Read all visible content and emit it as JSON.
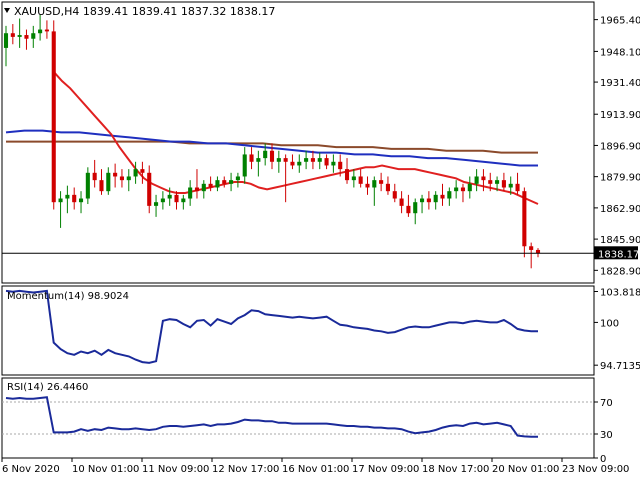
{
  "symbol_header": "XAUUSD,H4  1839.41 1839.41 1837.32 1838.17",
  "price_tag": "1838.17",
  "colors": {
    "bull": "#008000",
    "bear": "#d00000",
    "ma_fast": "#e02020",
    "ma_mid": "#1f2fbf",
    "ma_slow": "#8b4a2b",
    "osc": "#1a2a9a",
    "grid": "#aaaaaa",
    "frame": "#000000"
  },
  "chart_data": [
    {
      "type": "candlestick",
      "title": "XAUUSD,H4  1839.41 1839.41 1837.32 1838.17",
      "ylim": [
        1822,
        1975
      ],
      "y_ticks": [
        1965.4,
        1948.1,
        1931.4,
        1913.9,
        1896.9,
        1879.9,
        1862.9,
        1845.9,
        1828.9
      ],
      "y_tick_labels": [
        "1965.40",
        "1948.10",
        "1931.40",
        "1913.90",
        "1896.90",
        "1879.90",
        "1862.90",
        "1845.90",
        "1828.90"
      ],
      "last_price": 1838.17,
      "candles": [
        [
          1950.0,
          1962.0,
          1940.0,
          1958.0
        ],
        [
          1958.0,
          1963.0,
          1952.0,
          1956.0
        ],
        [
          1956.0,
          1966.0,
          1950.0,
          1957.0
        ],
        [
          1957.0,
          1960.0,
          1949.0,
          1955.0
        ],
        [
          1955.0,
          1962.0,
          1950.0,
          1958.0
        ],
        [
          1958.0,
          1968.0,
          1954.0,
          1960.0
        ],
        [
          1960.0,
          1965.0,
          1955.0,
          1959.0
        ],
        [
          1959.0,
          1965.0,
          1862.0,
          1866.0
        ],
        [
          1866.0,
          1872.0,
          1852.0,
          1868.0
        ],
        [
          1868.0,
          1875.0,
          1860.0,
          1870.0
        ],
        [
          1870.0,
          1874.0,
          1862.0,
          1866.0
        ],
        [
          1866.0,
          1872.0,
          1860.0,
          1868.0
        ],
        [
          1868.0,
          1885.0,
          1865.0,
          1882.0
        ],
        [
          1882.0,
          1889.0,
          1874.0,
          1878.0
        ],
        [
          1878.0,
          1884.0,
          1870.0,
          1872.0
        ],
        [
          1872.0,
          1885.0,
          1870.0,
          1882.0
        ],
        [
          1882.0,
          1887.0,
          1874.0,
          1880.0
        ],
        [
          1880.0,
          1884.0,
          1874.0,
          1878.0
        ],
        [
          1878.0,
          1884.0,
          1872.0,
          1880.0
        ],
        [
          1880.0,
          1888.0,
          1876.0,
          1884.0
        ],
        [
          1884.0,
          1888.0,
          1876.0,
          1882.0
        ],
        [
          1882.0,
          1886.0,
          1860.0,
          1864.0
        ],
        [
          1864.0,
          1870.0,
          1858.0,
          1866.0
        ],
        [
          1866.0,
          1872.0,
          1862.0,
          1868.0
        ],
        [
          1868.0,
          1874.0,
          1864.0,
          1870.0
        ],
        [
          1870.0,
          1872.0,
          1862.0,
          1866.0
        ],
        [
          1866.0,
          1870.0,
          1862.0,
          1868.0
        ],
        [
          1868.0,
          1878.0,
          1864.0,
          1874.0
        ],
        [
          1874.0,
          1884.0,
          1868.0,
          1872.0
        ],
        [
          1872.0,
          1878.0,
          1868.0,
          1876.0
        ],
        [
          1876.0,
          1880.0,
          1872.0,
          1874.0
        ],
        [
          1874.0,
          1880.0,
          1872.0,
          1878.0
        ],
        [
          1878.0,
          1880.0,
          1874.0,
          1876.0
        ],
        [
          1876.0,
          1882.0,
          1872.0,
          1878.0
        ],
        [
          1878.0,
          1882.0,
          1874.0,
          1880.0
        ],
        [
          1880.0,
          1896.0,
          1876.0,
          1892.0
        ],
        [
          1892.0,
          1896.0,
          1884.0,
          1888.0
        ],
        [
          1888.0,
          1894.0,
          1880.0,
          1890.0
        ],
        [
          1890.0,
          1898.0,
          1886.0,
          1894.0
        ],
        [
          1894.0,
          1898.0,
          1884.0,
          1888.0
        ],
        [
          1888.0,
          1894.0,
          1882.0,
          1890.0
        ],
        [
          1890.0,
          1892.0,
          1866.0,
          1888.0
        ],
        [
          1888.0,
          1892.0,
          1884.0,
          1886.0
        ],
        [
          1886.0,
          1892.0,
          1882.0,
          1888.0
        ],
        [
          1888.0,
          1894.0,
          1884.0,
          1890.0
        ],
        [
          1890.0,
          1894.0,
          1884.0,
          1888.0
        ],
        [
          1888.0,
          1893.0,
          1884.0,
          1890.0
        ],
        [
          1890.0,
          1892.0,
          1884.0,
          1886.0
        ],
        [
          1886.0,
          1892.0,
          1882.0,
          1888.0
        ],
        [
          1888.0,
          1892.0,
          1880.0,
          1884.0
        ],
        [
          1884.0,
          1890.0,
          1876.0,
          1878.0
        ],
        [
          1878.0,
          1884.0,
          1874.0,
          1880.0
        ],
        [
          1880.0,
          1884.0,
          1874.0,
          1876.0
        ],
        [
          1876.0,
          1880.0,
          1870.0,
          1874.0
        ],
        [
          1874.0,
          1880.0,
          1864.0,
          1878.0
        ],
        [
          1878.0,
          1882.0,
          1872.0,
          1876.0
        ],
        [
          1876.0,
          1880.0,
          1870.0,
          1872.0
        ],
        [
          1872.0,
          1876.0,
          1866.0,
          1868.0
        ],
        [
          1868.0,
          1872.0,
          1860.0,
          1864.0
        ],
        [
          1864.0,
          1870.0,
          1858.0,
          1860.0
        ],
        [
          1860.0,
          1868.0,
          1854.0,
          1866.0
        ],
        [
          1866.0,
          1870.0,
          1860.0,
          1868.0
        ],
        [
          1868.0,
          1872.0,
          1862.0,
          1866.0
        ],
        [
          1866.0,
          1872.0,
          1862.0,
          1870.0
        ],
        [
          1870.0,
          1876.0,
          1864.0,
          1868.0
        ],
        [
          1868.0,
          1874.0,
          1864.0,
          1872.0
        ],
        [
          1872.0,
          1878.0,
          1868.0,
          1874.0
        ],
        [
          1874.0,
          1876.0,
          1866.0,
          1872.0
        ],
        [
          1872.0,
          1880.0,
          1868.0,
          1876.0
        ],
        [
          1876.0,
          1884.0,
          1872.0,
          1880.0
        ],
        [
          1880.0,
          1884.0,
          1872.0,
          1878.0
        ],
        [
          1878.0,
          1882.0,
          1872.0,
          1876.0
        ],
        [
          1876.0,
          1880.0,
          1872.0,
          1878.0
        ],
        [
          1878.0,
          1882.0,
          1872.0,
          1874.0
        ],
        [
          1874.0,
          1880.0,
          1870.0,
          1876.0
        ],
        [
          1876.0,
          1882.0,
          1870.0,
          1872.0
        ],
        [
          1872.0,
          1874.0,
          1836.0,
          1842.0
        ],
        [
          1842.0,
          1844.0,
          1830.0,
          1840.0
        ],
        [
          1840.0,
          1841.0,
          1836.0,
          1838.17
        ]
      ],
      "ma_fast": [
        1937,
        1932,
        1928,
        1923,
        1918,
        1913,
        1908,
        1903,
        1896,
        1890,
        1884,
        1879,
        1876,
        1874,
        1872,
        1871,
        1871,
        1872,
        1873,
        1874,
        1875,
        1876,
        1877,
        1877,
        1876,
        1874,
        1873,
        1874,
        1875,
        1876,
        1877,
        1878,
        1879,
        1880,
        1881,
        1882,
        1883,
        1884,
        1885,
        1885,
        1886,
        1885,
        1884,
        1884,
        1884,
        1883,
        1882,
        1881,
        1880,
        1879,
        1877,
        1876,
        1875,
        1874,
        1873,
        1872,
        1871,
        1869,
        1867,
        1865
      ],
      "ma_fast_start": 7,
      "ma_mid": [
        1904,
        1905,
        1905,
        1904,
        1904,
        1903,
        1902,
        1901,
        1900,
        1899,
        1899,
        1898,
        1898,
        1897,
        1896,
        1895,
        1894,
        1893,
        1893,
        1892,
        1892,
        1891,
        1891,
        1890,
        1890,
        1889,
        1888,
        1887,
        1886,
        1886
      ],
      "ma_mid_start": 0,
      "ma_slow": [
        1899,
        1899,
        1899,
        1899,
        1899,
        1899,
        1899,
        1899,
        1899,
        1899,
        1898,
        1898,
        1898,
        1898,
        1898,
        1897,
        1897,
        1897,
        1896,
        1896,
        1896,
        1895,
        1895,
        1895,
        1894,
        1894,
        1894,
        1893,
        1893,
        1893
      ],
      "ma_slow_start": 0,
      "x_tick_labels": [
        "6 Nov 2020",
        "10 Nov 01:00",
        "11 Nov 09:00",
        "12 Nov 17:00",
        "16 Nov 01:00",
        "17 Nov 09:00",
        "18 Nov 17:00",
        "20 Nov 01:00",
        "23 Nov 09:00"
      ]
    },
    {
      "type": "line",
      "title": "Momentum(14) 98.9024",
      "ylim": [
        93.5,
        104.5
      ],
      "y_tick_labels": [
        "103.8183",
        "100",
        "94.7135"
      ],
      "y_ticks": [
        103.8183,
        100,
        94.7135
      ],
      "values": [
        103.9,
        103.8,
        103.9,
        103.8,
        103.7,
        103.8,
        103.9,
        97.5,
        96.7,
        96.2,
        96.0,
        96.4,
        96.2,
        96.5,
        96.0,
        96.6,
        96.2,
        96.0,
        95.8,
        95.4,
        95.1,
        95.0,
        95.2,
        100.2,
        100.4,
        100.3,
        99.8,
        99.4,
        100.2,
        100.3,
        99.6,
        100.4,
        100.1,
        99.8,
        100.5,
        100.9,
        101.5,
        101.4,
        101.0,
        100.9,
        100.8,
        100.7,
        100.6,
        100.7,
        100.6,
        100.5,
        100.6,
        100.7,
        100.2,
        99.7,
        99.6,
        99.4,
        99.3,
        99.2,
        99.0,
        98.9,
        98.7,
        98.8,
        99.1,
        99.4,
        99.5,
        99.4,
        99.4,
        99.6,
        99.8,
        100.0,
        100.0,
        99.9,
        100.1,
        100.2,
        100.1,
        100.0,
        100.0,
        100.3,
        99.8,
        99.2,
        99.0,
        98.9,
        98.9
      ],
      "last_value": 98.9024
    },
    {
      "type": "line",
      "title": "RSI(14) 26.4460",
      "ylim": [
        0,
        100
      ],
      "y_ticks": [
        70,
        30,
        0
      ],
      "y_tick_labels": [
        "70",
        "30",
        "0"
      ],
      "values": [
        75,
        74,
        75,
        74,
        74,
        75,
        76,
        32,
        32,
        32,
        33,
        36,
        34,
        36,
        35,
        38,
        37,
        36,
        36,
        37,
        36,
        35,
        36,
        39,
        40,
        40,
        39,
        40,
        41,
        42,
        40,
        42,
        42,
        43,
        45,
        48,
        47,
        47,
        46,
        46,
        44,
        44,
        43,
        43,
        43,
        43,
        43,
        43,
        42,
        41,
        40,
        40,
        39,
        39,
        38,
        38,
        37,
        37,
        36,
        33,
        31,
        32,
        33,
        35,
        38,
        40,
        41,
        40,
        43,
        44,
        42,
        43,
        44,
        42,
        40,
        28,
        27,
        26.5,
        26.446
      ],
      "last_value": 26.446
    }
  ]
}
